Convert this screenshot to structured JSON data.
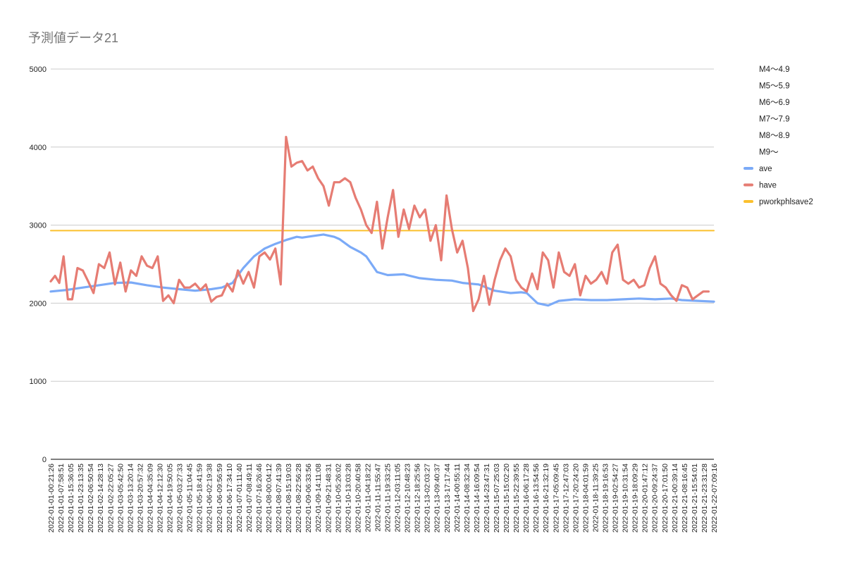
{
  "chart_data": {
    "type": "line",
    "title": "予測値データ21",
    "xlabel": "",
    "ylabel": "",
    "ylim": [
      0,
      5000
    ],
    "yticks": [
      0,
      1000,
      2000,
      3000,
      4000,
      5000
    ],
    "grid": true,
    "legend_position": "right",
    "x_tick_labels": [
      "2022-01-01-00:21:26",
      "2022-01-01-07:58:51",
      "2022-01-01-15:36:05",
      "2022-01-01-23:13:35",
      "2022-01-02-06:50:54",
      "2022-01-02-14:28:13",
      "2022-01-02-22:05:27",
      "2022-01-03-05:42:50",
      "2022-01-03-13:20:14",
      "2022-01-03-20:57:32",
      "2022-01-04-04:35:09",
      "2022-01-04-12:12:30",
      "2022-01-04-19:50:05",
      "2022-01-05-03:27:33",
      "2022-01-05-11:04:45",
      "2022-01-05-18:41:59",
      "2022-01-06-02:19:38",
      "2022-01-06-09:56:59",
      "2022-01-06-17:34:10",
      "2022-01-07-01:11:40",
      "2022-01-07-08:49:11",
      "2022-01-07-16:26:46",
      "2022-01-08-00:04:12",
      "2022-01-08-07:41:39",
      "2022-01-08-15:19:03",
      "2022-01-08-22:56:28",
      "2022-01-09-06:33:56",
      "2022-01-09-14:11:08",
      "2022-01-09-21:48:31",
      "2022-01-10-05:26:02",
      "2022-01-10-13:03:28",
      "2022-01-10-20:40:58",
      "2022-01-11-04:18:22",
      "2022-01-11-11:55:47",
      "2022-01-11-19:33:25",
      "2022-01-12-03:11:05",
      "2022-01-12-10:48:23",
      "2022-01-12-18:25:56",
      "2022-01-13-02:03:27",
      "2022-01-13-09:40:37",
      "2022-01-13-17:17:44",
      "2022-01-14-00:55:11",
      "2022-01-14-08:32:34",
      "2022-01-14-16:09:54",
      "2022-01-14-23:47:31",
      "2022-01-15-07:25:03",
      "2022-01-15-15:02:20",
      "2022-01-15-22:39:55",
      "2022-01-16-06:17:28",
      "2022-01-16-13:54:56",
      "2022-01-16-21:32:19",
      "2022-01-17-05:09:45",
      "2022-01-17-12:47:03",
      "2022-01-17-20:24:20",
      "2022-01-18-04:01:59",
      "2022-01-18-11:39:25",
      "2022-01-18-19:16:53",
      "2022-01-19-02:54:27",
      "2022-01-19-10:31:54",
      "2022-01-19-18:09:29",
      "2022-01-20-01:47:12",
      "2022-01-20-09:24:37",
      "2022-01-20-17:01:50",
      "2022-01-21-00:39:14",
      "2022-01-21-08:16:45",
      "2022-01-21-15:54:01",
      "2022-01-21-23:31:28",
      "2022-01-22-07:09:16"
    ],
    "legend": [
      {
        "name": "M4〜4.9",
        "color": null
      },
      {
        "name": "M5〜5.9",
        "color": null
      },
      {
        "name": "M6〜6.9",
        "color": null
      },
      {
        "name": "M7〜7.9",
        "color": null
      },
      {
        "name": "M8〜8.9",
        "color": null
      },
      {
        "name": "M9〜",
        "color": null
      },
      {
        "name": "ave",
        "color": "#7baaf7"
      },
      {
        "name": "have",
        "color": "#e67c73"
      },
      {
        "name": "pworkphlsave2",
        "color": "#fbc02d"
      }
    ],
    "series": [
      {
        "name": "ave",
        "color": "#7baaf7",
        "points": [
          [
            0,
            2150
          ],
          [
            3,
            2170
          ],
          [
            6,
            2200
          ],
          [
            9,
            2230
          ],
          [
            12,
            2260
          ],
          [
            15,
            2265
          ],
          [
            18,
            2230
          ],
          [
            21,
            2200
          ],
          [
            24,
            2180
          ],
          [
            27,
            2160
          ],
          [
            30,
            2180
          ],
          [
            32,
            2200
          ],
          [
            34,
            2260
          ],
          [
            36,
            2450
          ],
          [
            38,
            2600
          ],
          [
            40,
            2700
          ],
          [
            42,
            2760
          ],
          [
            44,
            2810
          ],
          [
            46,
            2850
          ],
          [
            47,
            2840
          ],
          [
            49,
            2860
          ],
          [
            51,
            2880
          ],
          [
            53,
            2850
          ],
          [
            54,
            2820
          ],
          [
            56,
            2720
          ],
          [
            58,
            2650
          ],
          [
            59,
            2600
          ],
          [
            61,
            2400
          ],
          [
            63,
            2360
          ],
          [
            66,
            2370
          ],
          [
            69,
            2320
          ],
          [
            72,
            2300
          ],
          [
            75,
            2290
          ],
          [
            77,
            2260
          ],
          [
            80,
            2240
          ],
          [
            83,
            2160
          ],
          [
            86,
            2130
          ],
          [
            88,
            2140
          ],
          [
            89,
            2130
          ],
          [
            91,
            2000
          ],
          [
            93,
            1970
          ],
          [
            95,
            2030
          ],
          [
            98,
            2050
          ],
          [
            101,
            2040
          ],
          [
            104,
            2040
          ],
          [
            107,
            2050
          ],
          [
            110,
            2060
          ],
          [
            113,
            2050
          ],
          [
            116,
            2060
          ],
          [
            118,
            2040
          ],
          [
            121,
            2030
          ],
          [
            124,
            2020
          ]
        ]
      },
      {
        "name": "have",
        "color": "#e67c73",
        "points": [
          [
            0,
            2280
          ],
          [
            0.8,
            2350
          ],
          [
            1.6,
            2260
          ],
          [
            2.4,
            2600
          ],
          [
            3.2,
            2050
          ],
          [
            4,
            2050
          ],
          [
            5,
            2450
          ],
          [
            6,
            2420
          ],
          [
            7,
            2280
          ],
          [
            8,
            2130
          ],
          [
            9,
            2500
          ],
          [
            10,
            2450
          ],
          [
            11,
            2650
          ],
          [
            12,
            2240
          ],
          [
            13,
            2520
          ],
          [
            14,
            2150
          ],
          [
            15,
            2420
          ],
          [
            16,
            2350
          ],
          [
            17,
            2600
          ],
          [
            18,
            2480
          ],
          [
            19,
            2450
          ],
          [
            20,
            2600
          ],
          [
            21,
            2030
          ],
          [
            22,
            2100
          ],
          [
            23,
            2000
          ],
          [
            24,
            2300
          ],
          [
            25,
            2200
          ],
          [
            26,
            2200
          ],
          [
            27,
            2250
          ],
          [
            28,
            2170
          ],
          [
            29,
            2240
          ],
          [
            30,
            2020
          ],
          [
            31,
            2080
          ],
          [
            32,
            2100
          ],
          [
            33,
            2250
          ],
          [
            34,
            2150
          ],
          [
            35,
            2420
          ],
          [
            36,
            2250
          ],
          [
            37,
            2400
          ],
          [
            38,
            2200
          ],
          [
            39,
            2600
          ],
          [
            40,
            2650
          ],
          [
            41,
            2560
          ],
          [
            42,
            2700
          ],
          [
            43,
            2240
          ],
          [
            44,
            4130
          ],
          [
            45,
            3750
          ],
          [
            46,
            3800
          ],
          [
            47,
            3820
          ],
          [
            48,
            3700
          ],
          [
            49,
            3750
          ],
          [
            50,
            3600
          ],
          [
            51,
            3500
          ],
          [
            52,
            3250
          ],
          [
            53,
            3550
          ],
          [
            54,
            3550
          ],
          [
            55,
            3600
          ],
          [
            56,
            3550
          ],
          [
            57,
            3350
          ],
          [
            58,
            3200
          ],
          [
            59,
            3000
          ],
          [
            60,
            2900
          ],
          [
            61,
            3300
          ],
          [
            62,
            2700
          ],
          [
            63,
            3100
          ],
          [
            64,
            3450
          ],
          [
            65,
            2850
          ],
          [
            66,
            3200
          ],
          [
            67,
            2950
          ],
          [
            68,
            3250
          ],
          [
            69,
            3100
          ],
          [
            70,
            3200
          ],
          [
            71,
            2800
          ],
          [
            72,
            3000
          ],
          [
            73,
            2550
          ],
          [
            74,
            3380
          ],
          [
            75,
            2950
          ],
          [
            76,
            2650
          ],
          [
            77,
            2800
          ],
          [
            78,
            2450
          ],
          [
            79,
            1900
          ],
          [
            80,
            2050
          ],
          [
            81,
            2350
          ],
          [
            82,
            1980
          ],
          [
            83,
            2300
          ],
          [
            84,
            2550
          ],
          [
            85,
            2700
          ],
          [
            86,
            2600
          ],
          [
            87,
            2300
          ],
          [
            88,
            2200
          ],
          [
            89,
            2150
          ],
          [
            90,
            2380
          ],
          [
            91,
            2180
          ],
          [
            92,
            2650
          ],
          [
            93,
            2550
          ],
          [
            94,
            2200
          ],
          [
            95,
            2650
          ],
          [
            96,
            2400
          ],
          [
            97,
            2350
          ],
          [
            98,
            2500
          ],
          [
            99,
            2100
          ],
          [
            100,
            2350
          ],
          [
            101,
            2250
          ],
          [
            102,
            2300
          ],
          [
            103,
            2400
          ],
          [
            104,
            2250
          ],
          [
            105,
            2650
          ],
          [
            106,
            2750
          ],
          [
            107,
            2300
          ],
          [
            108,
            2250
          ],
          [
            109,
            2300
          ],
          [
            110,
            2200
          ],
          [
            111,
            2230
          ],
          [
            112,
            2450
          ],
          [
            113,
            2600
          ],
          [
            114,
            2250
          ],
          [
            115,
            2200
          ],
          [
            116,
            2100
          ],
          [
            117,
            2030
          ],
          [
            118,
            2230
          ],
          [
            119,
            2200
          ],
          [
            120,
            2050
          ],
          [
            121,
            2100
          ],
          [
            122,
            2150
          ],
          [
            123,
            2150
          ]
        ]
      },
      {
        "name": "pworkphlsave2",
        "color": "#fbc02d",
        "points": [
          [
            0,
            2930
          ],
          [
            124,
            2930
          ]
        ]
      }
    ]
  }
}
